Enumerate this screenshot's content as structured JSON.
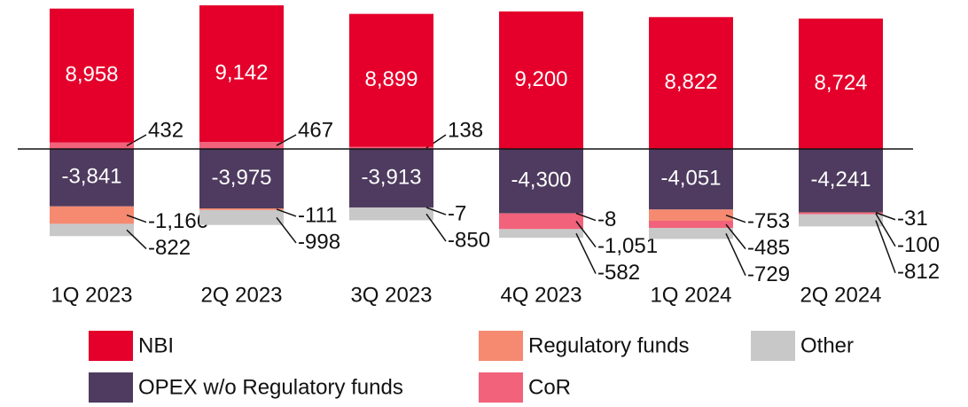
{
  "chart_data": {
    "type": "bar",
    "stacked": true,
    "categories": [
      "1Q 2023",
      "2Q 2023",
      "3Q 2023",
      "4Q 2023",
      "1Q 2024",
      "2Q 2024"
    ],
    "series": [
      {
        "name": "NBI",
        "color": "#e4002b",
        "values": [
          8958,
          9142,
          8899,
          9200,
          8822,
          8724
        ]
      },
      {
        "name": "OPEX w/o Regulatory funds",
        "color": "#4e3b5f",
        "values": [
          -3841,
          -3975,
          -3913,
          -4300,
          -4051,
          -4241
        ]
      },
      {
        "name": "Regulatory funds",
        "color": "#f58a70",
        "values": [
          -1166,
          -111,
          -7,
          -8,
          -753,
          -31
        ]
      },
      {
        "name": "CoR",
        "color": "#f2627b",
        "values": [
          432,
          467,
          138,
          -1051,
          -485,
          -100
        ]
      },
      {
        "name": "Other",
        "color": "#c8c8c8",
        "values": [
          -822,
          -998,
          -850,
          -582,
          -729,
          -812
        ]
      }
    ],
    "value_labels": true
  }
}
